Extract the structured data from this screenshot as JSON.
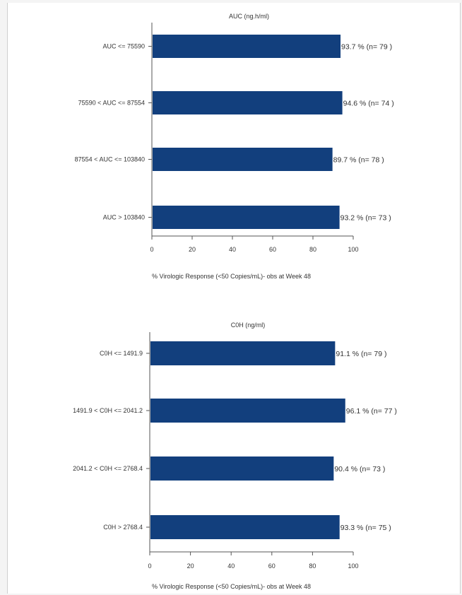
{
  "chart_data": [
    {
      "type": "bar",
      "orientation": "horizontal",
      "title": "AUC (ng.h/ml)",
      "xlabel": "% Virologic Response (<50 Copies/mL)- obs at Week 48",
      "ylabel": "",
      "xlim": [
        0,
        100
      ],
      "xticks": [
        "0",
        "20",
        "40",
        "60",
        "80",
        "100"
      ],
      "categories": [
        "AUC <= 75590",
        "75590 < AUC <= 87554",
        "87554 < AUC <= 103840",
        "AUC > 103840"
      ],
      "values": [
        93.7,
        94.6,
        89.7,
        93.2
      ],
      "labels": [
        "93.7 % (n= 79 )",
        "94.6 % (n= 74 )",
        "89.7 % (n= 78 )",
        "93.2 % (n= 73 )"
      ],
      "bar_color": "#123f7d",
      "grid": false
    },
    {
      "type": "bar",
      "orientation": "horizontal",
      "title": "C0H (ng/ml)",
      "xlabel": "% Virologic Response (<50 Copies/mL)- obs at Week 48",
      "ylabel": "",
      "xlim": [
        0,
        100
      ],
      "xticks": [
        "0",
        "20",
        "40",
        "60",
        "80",
        "100"
      ],
      "categories": [
        "C0H <= 1491.9",
        "1491.9 < C0H <= 2041.2",
        "2041.2 < C0H <= 2768.4",
        "C0H > 2768.4"
      ],
      "values": [
        91.1,
        96.1,
        90.4,
        93.3
      ],
      "labels": [
        "91.1 % (n= 79 )",
        "96.1 % (n= 77 )",
        "90.4 % (n= 73 )",
        "93.3 % (n= 75 )"
      ],
      "bar_color": "#123f7d",
      "grid": false
    }
  ]
}
